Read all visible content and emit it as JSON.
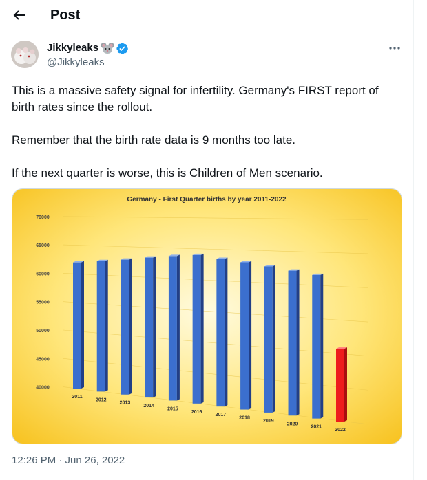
{
  "header": {
    "title": "Post",
    "back_icon": "arrow-left-icon"
  },
  "author": {
    "name": "Jikkyleaks",
    "handle": "@Jikkyleaks",
    "emoji": "mouse-face-emoji",
    "verified_badge": "verified-check-icon",
    "verified_color": "#1d9bf0"
  },
  "more_icon": "more-horizontal-icon",
  "tweet": {
    "paragraphs": [
      "This is a massive safety signal for infertility. Germany's FIRST report of birth rates since the rollout.",
      "Remember that the birth rate data is 9 months too late.",
      "If the next quarter is worse, this is Children of Men scenario."
    ]
  },
  "timestamp": "12:26 PM · Jun 26, 2022",
  "chart_data": {
    "type": "bar",
    "title": "Germany - First Quarter births by year 2011-2022",
    "categories": [
      "2011",
      "2012",
      "2013",
      "2014",
      "2015",
      "2016",
      "2017",
      "2018",
      "2019",
      "2020",
      "2021",
      "2022"
    ],
    "values": [
      62000,
      62400,
      62800,
      63300,
      63700,
      64000,
      63500,
      63100,
      62600,
      62100,
      61600,
      50800
    ],
    "ylim": [
      40000,
      70000
    ],
    "y_ticks": [
      "70000",
      "65000",
      "60000",
      "55000",
      "50000",
      "45000",
      "40000"
    ],
    "xlabel": "",
    "ylabel": "",
    "bar_color": "#3b6fce",
    "highlight_color": "#ee1c1c",
    "highlight_category": "2022",
    "background": "#ffd84d"
  }
}
